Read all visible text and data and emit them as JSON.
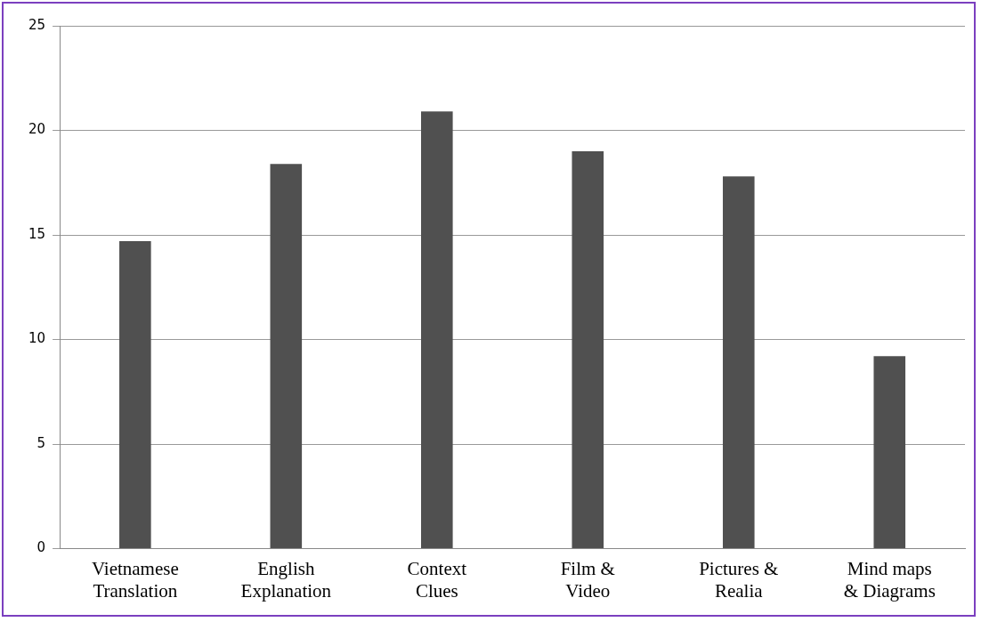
{
  "chart_data": {
    "type": "bar",
    "categories": [
      "Vietnamese\nTranslation",
      "English\nExplanation",
      "Context\nClues",
      "Film &\nVideo",
      "Pictures &\nRealia",
      "Mind maps\n& Diagrams"
    ],
    "values": [
      14.7,
      18.4,
      20.9,
      19.0,
      17.8,
      9.2
    ],
    "color": "#505050",
    "ylim": [
      0,
      25
    ],
    "yticks": [
      0,
      5,
      10,
      15,
      20,
      25
    ],
    "grid": "y",
    "legend": false
  }
}
